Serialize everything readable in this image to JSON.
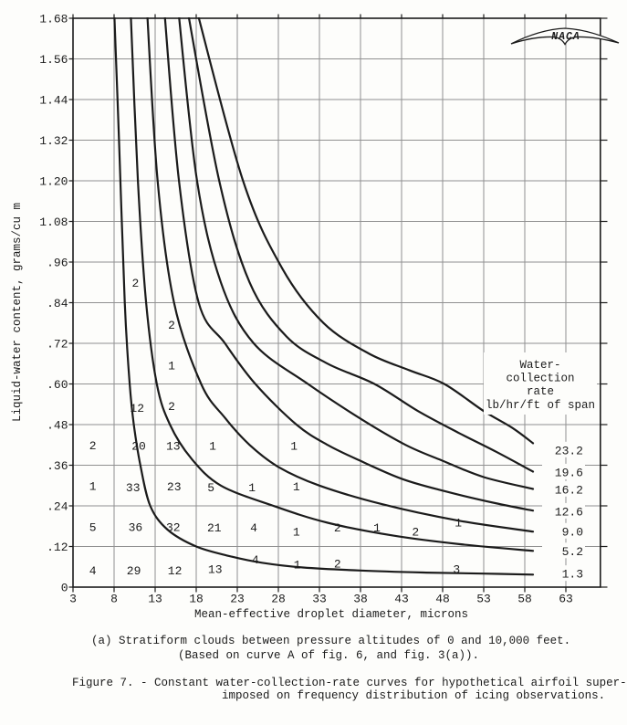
{
  "page": {
    "caption_a_line1": "(a) Stratiform clouds between pressure altitudes of 0 and 10,000 feet.",
    "caption_a_line2": "(Based on curve A of fig. 6, and fig. 3(a)).",
    "figure_caption_line1": "Figure 7. - Constant water-collection-rate curves for hypothetical airfoil super-",
    "figure_caption_line2": "imposed on frequency distribution of icing observations.",
    "naca_logo_text": "NACA"
  },
  "colors": {
    "ink": "#1b1b1b",
    "grid": "#909090",
    "paper": "#fdfdfb"
  },
  "chart_data": {
    "type": "line",
    "xlabel": "Mean-effective droplet diameter, microns",
    "ylabel": "Liquid-water content, grams/cu m",
    "x_range": [
      3,
      67.2
    ],
    "y_range": [
      0,
      1.68
    ],
    "grid": true,
    "x_ticks": [
      3,
      8,
      13,
      18,
      23,
      28,
      33,
      38,
      43,
      48,
      53,
      58,
      63
    ],
    "y_ticks": [
      {
        "v": 0.0,
        "label": "0"
      },
      {
        "v": 0.12,
        "label": ".12"
      },
      {
        "v": 0.24,
        "label": ".24"
      },
      {
        "v": 0.36,
        "label": ".36"
      },
      {
        "v": 0.48,
        "label": ".48"
      },
      {
        "v": 0.6,
        "label": ".60"
      },
      {
        "v": 0.72,
        "label": ".72"
      },
      {
        "v": 0.84,
        "label": ".84"
      },
      {
        "v": 0.96,
        "label": ".96"
      },
      {
        "v": 1.08,
        "label": "1.08"
      },
      {
        "v": 1.2,
        "label": "1.20"
      },
      {
        "v": 1.32,
        "label": "1.32"
      },
      {
        "v": 1.44,
        "label": "1.44"
      },
      {
        "v": 1.56,
        "label": "1.56"
      },
      {
        "v": 1.68,
        "label": "1.68"
      }
    ],
    "legend_title_lines": [
      "Water-",
      "collection",
      "rate",
      "lb/hr/ft of span"
    ],
    "series": [
      {
        "name": "1.3",
        "label_w": 0.04,
        "points": [
          [
            8.0,
            1.71
          ],
          [
            8.6,
            1.32
          ],
          [
            9.3,
            0.84
          ],
          [
            9.9,
            0.6
          ],
          [
            10.4,
            0.48
          ],
          [
            11.2,
            0.36
          ],
          [
            12.4,
            0.24
          ],
          [
            14.5,
            0.17
          ],
          [
            18.0,
            0.12
          ],
          [
            22,
            0.092
          ],
          [
            26,
            0.072
          ],
          [
            31,
            0.058
          ],
          [
            38,
            0.049
          ],
          [
            46,
            0.043
          ],
          [
            53,
            0.04
          ],
          [
            59,
            0.037
          ]
        ]
      },
      {
        "name": "5.2",
        "label_w": 0.107,
        "points": [
          [
            10.0,
            1.71
          ],
          [
            10.9,
            1.2
          ],
          [
            11.9,
            0.84
          ],
          [
            13.2,
            0.6
          ],
          [
            14.8,
            0.48
          ],
          [
            17.4,
            0.38
          ],
          [
            21,
            0.3
          ],
          [
            27.4,
            0.24
          ],
          [
            34,
            0.19
          ],
          [
            42,
            0.152
          ],
          [
            50,
            0.127
          ],
          [
            59,
            0.107
          ]
        ]
      },
      {
        "name": "9.0",
        "label_w": 0.165,
        "points": [
          [
            12.0,
            1.71
          ],
          [
            13.3,
            1.2
          ],
          [
            15.3,
            0.84
          ],
          [
            18.6,
            0.6
          ],
          [
            21.5,
            0.5
          ],
          [
            24.5,
            0.42
          ],
          [
            28,
            0.355
          ],
          [
            33,
            0.3
          ],
          [
            40.6,
            0.245
          ],
          [
            50,
            0.196
          ],
          [
            59,
            0.164
          ]
        ]
      },
      {
        "name": "12.6",
        "label_w": 0.224,
        "points": [
          [
            14.1,
            1.71
          ],
          [
            15.9,
            1.2
          ],
          [
            18.3,
            0.84
          ],
          [
            21.5,
            0.72
          ],
          [
            25.2,
            0.6
          ],
          [
            30.2,
            0.48
          ],
          [
            34,
            0.42
          ],
          [
            37.8,
            0.375
          ],
          [
            43,
            0.32
          ],
          [
            48,
            0.285
          ],
          [
            54.4,
            0.248
          ],
          [
            59,
            0.226
          ]
        ]
      },
      {
        "name": "16.2",
        "label_w": 0.289,
        "points": [
          [
            15.8,
            1.71
          ],
          [
            18.1,
            1.2
          ],
          [
            21.0,
            0.9
          ],
          [
            25,
            0.72
          ],
          [
            31.6,
            0.6
          ],
          [
            38.5,
            0.49
          ],
          [
            43.5,
            0.42
          ],
          [
            47.8,
            0.375
          ],
          [
            53,
            0.325
          ],
          [
            59,
            0.29
          ]
        ]
      },
      {
        "name": "19.6",
        "label_w": 0.34,
        "points": [
          [
            16.9,
            1.71
          ],
          [
            20.8,
            1.2
          ],
          [
            24.5,
            0.9
          ],
          [
            29,
            0.74
          ],
          [
            34,
            0.66
          ],
          [
            39.7,
            0.6
          ],
          [
            45,
            0.52
          ],
          [
            50,
            0.455
          ],
          [
            54.5,
            0.4
          ],
          [
            59,
            0.341
          ]
        ]
      },
      {
        "name": "23.2",
        "label_w": 0.405,
        "points": [
          [
            18.0,
            1.71
          ],
          [
            23.7,
            1.2
          ],
          [
            28.5,
            0.94
          ],
          [
            33.5,
            0.78
          ],
          [
            39,
            0.69
          ],
          [
            44,
            0.64
          ],
          [
            48.2,
            0.6
          ],
          [
            53,
            0.52
          ],
          [
            56.5,
            0.47
          ],
          [
            59,
            0.425
          ]
        ]
      }
    ],
    "frequency_counts": [
      {
        "d": 10.6,
        "w": 0.9,
        "n": "2"
      },
      {
        "d": 15.0,
        "w": 0.775,
        "n": "2"
      },
      {
        "d": 15.0,
        "w": 0.655,
        "n": "1"
      },
      {
        "d": 10.8,
        "w": 0.53,
        "n": "12"
      },
      {
        "d": 15.0,
        "w": 0.535,
        "n": "2"
      },
      {
        "d": 5.4,
        "w": 0.42,
        "n": "2"
      },
      {
        "d": 11.0,
        "w": 0.418,
        "n": "20"
      },
      {
        "d": 15.2,
        "w": 0.418,
        "n": "13"
      },
      {
        "d": 20.0,
        "w": 0.418,
        "n": "1"
      },
      {
        "d": 29.9,
        "w": 0.418,
        "n": "1"
      },
      {
        "d": 5.4,
        "w": 0.3,
        "n": "1"
      },
      {
        "d": 10.3,
        "w": 0.295,
        "n": "33"
      },
      {
        "d": 15.3,
        "w": 0.298,
        "n": "23"
      },
      {
        "d": 19.8,
        "w": 0.295,
        "n": "5"
      },
      {
        "d": 24.8,
        "w": 0.295,
        "n": "1"
      },
      {
        "d": 30.2,
        "w": 0.298,
        "n": "1"
      },
      {
        "d": 5.4,
        "w": 0.178,
        "n": "5"
      },
      {
        "d": 10.6,
        "w": 0.178,
        "n": "36"
      },
      {
        "d": 15.2,
        "w": 0.178,
        "n": "32"
      },
      {
        "d": 20.2,
        "w": 0.176,
        "n": "21"
      },
      {
        "d": 25.0,
        "w": 0.176,
        "n": "4"
      },
      {
        "d": 30.2,
        "w": 0.165,
        "n": "1"
      },
      {
        "d": 35.2,
        "w": 0.176,
        "n": "2"
      },
      {
        "d": 40.0,
        "w": 0.176,
        "n": "1"
      },
      {
        "d": 44.7,
        "w": 0.165,
        "n": "2"
      },
      {
        "d": 49.9,
        "w": 0.192,
        "n": "1"
      },
      {
        "d": 5.4,
        "w": 0.05,
        "n": "4"
      },
      {
        "d": 10.4,
        "w": 0.05,
        "n": "29"
      },
      {
        "d": 15.4,
        "w": 0.05,
        "n": "12"
      },
      {
        "d": 20.3,
        "w": 0.054,
        "n": "13"
      },
      {
        "d": 25.2,
        "w": 0.082,
        "n": "4"
      },
      {
        "d": 30.3,
        "w": 0.067,
        "n": "1"
      },
      {
        "d": 35.2,
        "w": 0.07,
        "n": "2"
      },
      {
        "d": 49.7,
        "w": 0.054,
        "n": "3"
      }
    ]
  }
}
